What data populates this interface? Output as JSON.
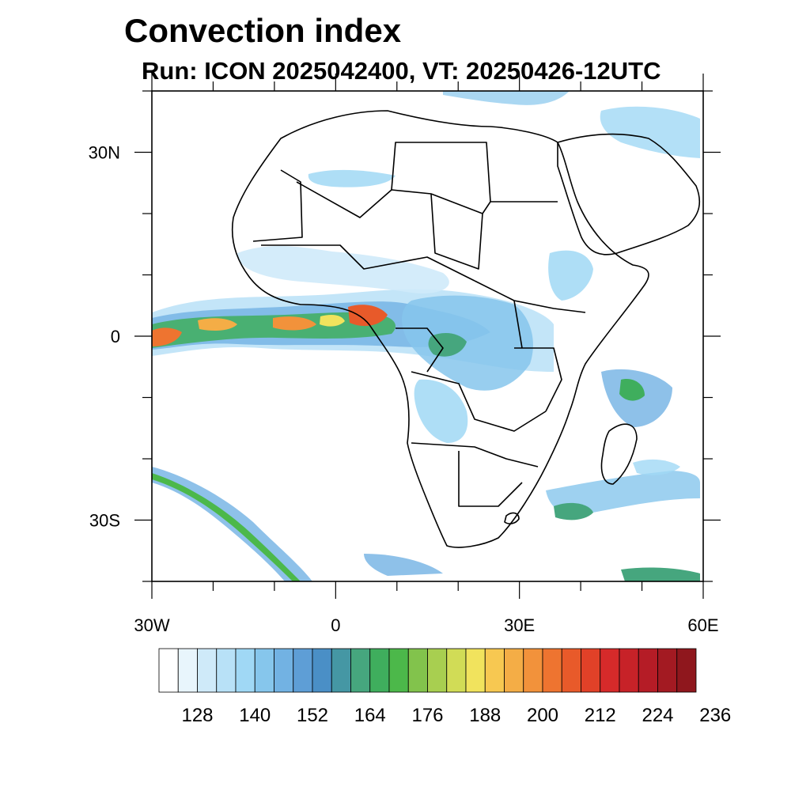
{
  "title": "Convection index",
  "subtitle": "Run: ICON 2025042400,  VT: 20250426-12UTC",
  "map": {
    "lon_range": [
      -30,
      60
    ],
    "lat_range": [
      -40,
      40
    ],
    "lon_ticks": [
      {
        "lon": -30,
        "label": "30W"
      },
      {
        "lon": 0,
        "label": "0"
      },
      {
        "lon": 30,
        "label": "30E"
      },
      {
        "lon": 60,
        "label": "60E"
      }
    ],
    "lat_ticks": [
      {
        "lat": 30,
        "label": "30N"
      },
      {
        "lat": 0,
        "label": "0"
      },
      {
        "lat": -30,
        "label": "30S"
      }
    ]
  },
  "colorbar": {
    "colors": [
      "#ffffff",
      "#e8f5fc",
      "#cfeaf9",
      "#b8e1f7",
      "#a0d8f5",
      "#86c6ec",
      "#72b2e3",
      "#5e9ed6",
      "#4a8fc6",
      "#4597a4",
      "#46a67e",
      "#3fae5d",
      "#4cb84a",
      "#82c34c",
      "#a8cf50",
      "#d1dc56",
      "#f1e35d",
      "#f7c851",
      "#f4ad46",
      "#f2923b",
      "#ee7430",
      "#e85a2a",
      "#e14128",
      "#d62a2a",
      "#c72228",
      "#b51c26",
      "#a31a22",
      "#8f171d"
    ],
    "labels": [
      "128",
      "140",
      "152",
      "164",
      "176",
      "188",
      "200",
      "212",
      "224",
      "236"
    ]
  }
}
